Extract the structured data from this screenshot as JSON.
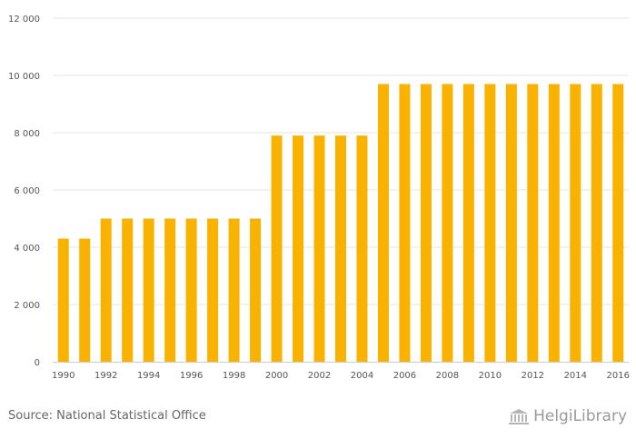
{
  "chart_data": {
    "type": "bar",
    "categories": [
      "1990",
      "1991",
      "1992",
      "1993",
      "1994",
      "1995",
      "1996",
      "1997",
      "1998",
      "1999",
      "2000",
      "2001",
      "2002",
      "2003",
      "2004",
      "2005",
      "2006",
      "2007",
      "2008",
      "2009",
      "2010",
      "2011",
      "2012",
      "2013",
      "2014",
      "2015",
      "2016"
    ],
    "x_tick_labels": [
      "1990",
      "1992",
      "1994",
      "1996",
      "1998",
      "2000",
      "2002",
      "2004",
      "2006",
      "2008",
      "2010",
      "2012",
      "2014",
      "2016"
    ],
    "values": [
      4300,
      4300,
      5000,
      5000,
      5000,
      5000,
      5000,
      5000,
      5000,
      5000,
      7900,
      7900,
      7900,
      7900,
      7900,
      9700,
      9700,
      9700,
      9700,
      9700,
      9700,
      9700,
      9700,
      9700,
      9700,
      9700,
      9700
    ],
    "ylim": [
      0,
      12000
    ],
    "y_ticks": [
      0,
      2000,
      4000,
      6000,
      8000,
      10000,
      12000
    ],
    "y_tick_labels": [
      "0",
      "2 000",
      "4 000",
      "6 000",
      "8 000",
      "10 000",
      "12 000"
    ],
    "grid": true,
    "bar_color": "#f9b200",
    "title": "",
    "xlabel": "",
    "ylabel": ""
  },
  "footer": {
    "source": "Source: National Statistical Office",
    "brand": "HelgiLibrary",
    "brand_icon": "library-building-icon"
  }
}
